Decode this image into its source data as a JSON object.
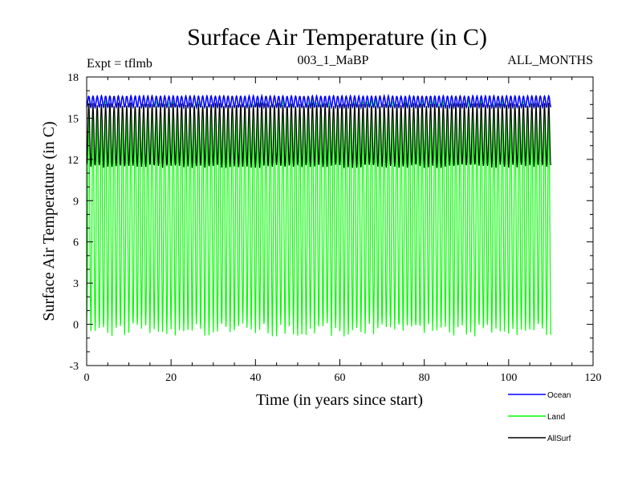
{
  "chart_data": {
    "type": "line",
    "title": "Surface Air Temperature (in C)",
    "experiment_label": "Expt = tflmb",
    "run_label": "003_1_MaBP",
    "months_label": "ALL_MONTHS",
    "xlabel": "Time (in years since start)",
    "ylabel": "Surface Air Temperature (in C)",
    "xlim": [
      0,
      120
    ],
    "ylim": [
      -3,
      18
    ],
    "xticks": [
      0,
      20,
      40,
      60,
      80,
      100,
      120
    ],
    "yticks": [
      -3,
      0,
      3,
      6,
      9,
      12,
      15,
      18
    ],
    "x_range_years": [
      0,
      110
    ],
    "samples_per_year": 12,
    "legend_position": "bottom-right",
    "series": [
      {
        "name": "Ocean",
        "color": "#0000ff",
        "seasonal_min": 15.8,
        "seasonal_max": 16.6
      },
      {
        "name": "Land",
        "color": "#00ff00",
        "seasonal_min": -0.4,
        "seasonal_max": 15.9
      },
      {
        "name": "AllSurf",
        "color": "#000000",
        "seasonal_min": 11.5,
        "seasonal_max": 16.0
      }
    ]
  }
}
